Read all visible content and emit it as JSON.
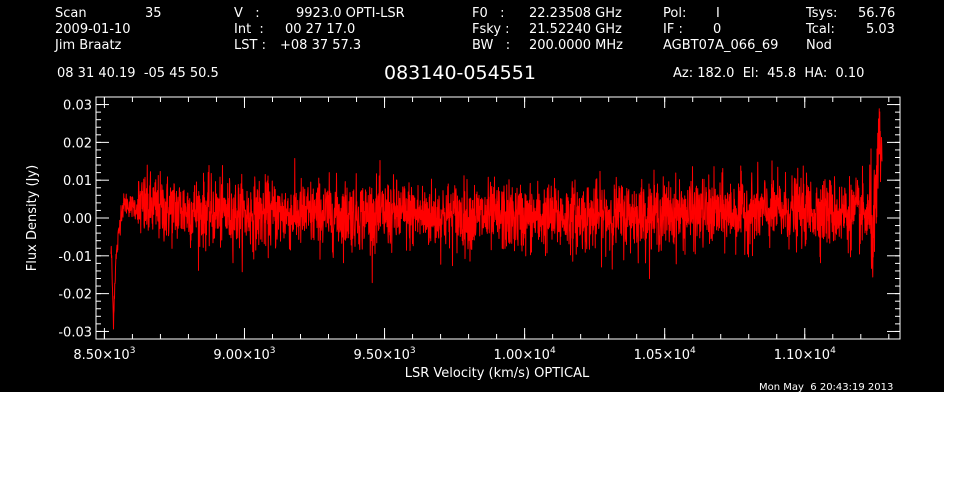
{
  "header": {
    "scan_label": "Scan",
    "scan_value": "35",
    "date": "2009-01-10",
    "observer": "Jim Braatz",
    "ra_dec": "08 31 40.19  -05 45 50.5",
    "v_label": "V   :",
    "v_value": "9923.0 OPTI-LSR",
    "int_label": "Int  :",
    "int_value": "00 27 17.0",
    "lst_label": "LST :",
    "lst_value": "+08 37 57.3",
    "f0_label": "F0   :",
    "f0_value": "22.23508 GHz",
    "fsky_label": "Fsky :",
    "fsky_value": "21.52240 GHz",
    "bw_label": "BW   :",
    "bw_value": "200.0000 MHz",
    "pol_label": "Pol:",
    "pol_value": "I",
    "if_label": "IF :",
    "if_value": "0",
    "project": "AGBT07A_066_69",
    "tsys_label": "Tsys:",
    "tsys_value": "56.76",
    "tcal_label": "Tcal:",
    "tcal_value": "5.03",
    "mode": "Nod",
    "source": "083140-054551",
    "az_el_ha": "Az: 182.0  El:  45.8  HA:  0.10"
  },
  "timestamp": "Mon May  6 20:43:19 2013",
  "colors": {
    "background": "#000000",
    "axes": "#ffffff",
    "spectrum": "#ff0000"
  },
  "chart_data": {
    "type": "line",
    "xlabel": "LSR Velocity (km/s) OPTICAL",
    "ylabel": "Flux Density (Jy)",
    "xlim": [
      8470,
      11340
    ],
    "ylim": [
      -0.032,
      0.032
    ],
    "x_ticks": [
      {
        "value": 8500,
        "mantissa": "8.50",
        "exponent": "3"
      },
      {
        "value": 9000,
        "mantissa": "9.00",
        "exponent": "3"
      },
      {
        "value": 9500,
        "mantissa": "9.50",
        "exponent": "3"
      },
      {
        "value": 10000,
        "mantissa": "1.00",
        "exponent": "4"
      },
      {
        "value": 10500,
        "mantissa": "1.05",
        "exponent": "4"
      },
      {
        "value": 11000,
        "mantissa": "1.10",
        "exponent": "4"
      }
    ],
    "y_ticks": [
      {
        "value": 0.03,
        "label": "0.03"
      },
      {
        "value": 0.02,
        "label": "0.02"
      },
      {
        "value": 0.01,
        "label": "0.01"
      },
      {
        "value": 0.0,
        "label": "0.00"
      },
      {
        "value": -0.01,
        "label": "-0.01"
      },
      {
        "value": -0.02,
        "label": "-0.02"
      },
      {
        "value": -0.03,
        "label": "-0.03"
      }
    ],
    "x_minor_step": 100,
    "y_minor_step": 0.002,
    "grid": false,
    "series": [
      {
        "color": "#ff0000",
        "noise_rms": 0.0045,
        "x_start": 8525,
        "x_end": 11275,
        "x": [
          8525,
          8532,
          8540,
          8550,
          8560,
          8575,
          8600,
          9000,
          9500,
          10000,
          10500,
          11000,
          11200,
          11235,
          11245,
          11255,
          11262,
          11268,
          11275
        ],
        "y": [
          -0.009,
          -0.027,
          -0.012,
          -0.005,
          0.002,
          0.004,
          0.003,
          0.001,
          0.001,
          0.0,
          0.001,
          0.002,
          0.001,
          0.0,
          -0.004,
          0.004,
          0.012,
          0.02,
          0.016
        ]
      }
    ]
  }
}
